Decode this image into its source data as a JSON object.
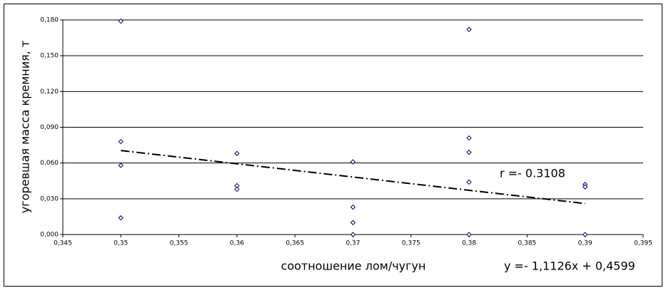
{
  "chart_data": {
    "type": "scatter",
    "x_label": "соотношение лом/чугун",
    "y_label": "угоревшая масса кремния, т",
    "annotations": [
      "r =- 0.3108",
      "y =- 1,1126x + 0,4599"
    ],
    "series": [
      {
        "color": "#000080",
        "x": [
          0.35,
          0.35,
          0.35,
          0.35,
          0.36,
          0.36,
          0.36,
          0.37,
          0.37,
          0.37,
          0.37,
          0.38,
          0.38,
          0.38,
          0.38,
          0.38,
          0.39,
          0.39,
          0.39
        ],
        "values": [
          0.179,
          0.078,
          0.058,
          0.014,
          0.068,
          0.041,
          0.038,
          0.061,
          0.023,
          0.01,
          0.0,
          0.172,
          0.081,
          0.069,
          0.044,
          0.0,
          0.042,
          0.04,
          0.0
        ]
      }
    ],
    "trendline": {
      "color": "#000000",
      "x": [
        0.35,
        0.39
      ],
      "values": [
        0.0705,
        0.026
      ]
    },
    "xlim": [
      0.345,
      0.395
    ],
    "xticks": [
      {
        "value": 0.345,
        "label": "0,345"
      },
      {
        "value": 0.35,
        "label": "0,35"
      },
      {
        "value": 0.355,
        "label": "0,355"
      },
      {
        "value": 0.36,
        "label": "0,36"
      },
      {
        "value": 0.365,
        "label": "0,365"
      },
      {
        "value": 0.37,
        "label": "0,37"
      },
      {
        "value": 0.375,
        "label": "0,375"
      },
      {
        "value": 0.38,
        "label": "0,38"
      },
      {
        "value": 0.385,
        "label": "0,385"
      },
      {
        "value": 0.39,
        "label": "0,39"
      },
      {
        "value": 0.395,
        "label": "0,395"
      }
    ],
    "ylim": [
      0,
      0.18
    ],
    "yticks": [
      {
        "value": 0,
        "label": "0,000"
      },
      {
        "value": 0.03,
        "label": "0,030"
      },
      {
        "value": 0.06,
        "label": "0,060"
      },
      {
        "value": 0.09,
        "label": "0,090"
      },
      {
        "value": 0.12,
        "label": "0,120"
      },
      {
        "value": 0.15,
        "label": "0,150"
      },
      {
        "value": 0.18,
        "label": "0,180"
      }
    ],
    "grid": true
  }
}
